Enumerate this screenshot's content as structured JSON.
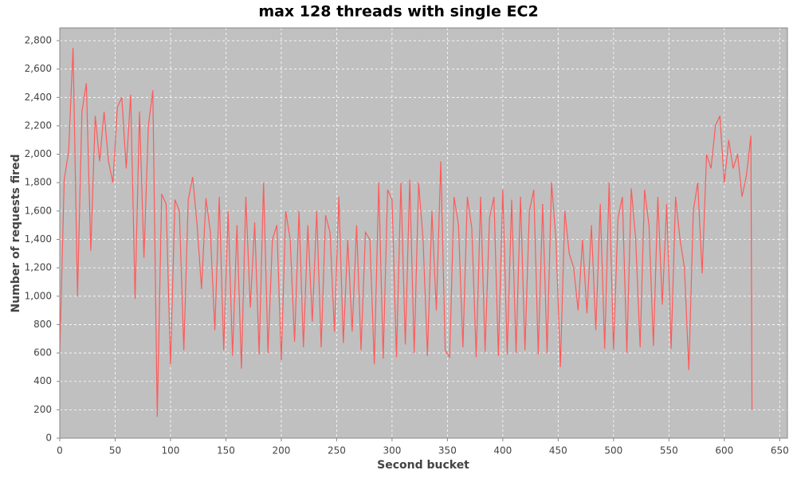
{
  "chart_data": {
    "type": "line",
    "title": "max 128 threads with single EC2",
    "x_label": "Second bucket",
    "y_label": "Number of requests fired",
    "color": "#ff5a5a",
    "background": "#c0c0c0",
    "grid": true,
    "x": [
      0,
      4,
      8,
      12,
      16,
      20,
      24,
      28,
      32,
      36,
      40,
      44,
      48,
      52,
      56,
      60,
      64,
      68,
      72,
      76,
      80,
      84,
      88,
      92,
      96,
      100,
      104,
      108,
      112,
      116,
      120,
      124,
      128,
      132,
      136,
      140,
      144,
      148,
      152,
      156,
      160,
      164,
      168,
      172,
      176,
      180,
      184,
      188,
      192,
      196,
      200,
      204,
      208,
      212,
      216,
      220,
      224,
      228,
      232,
      236,
      240,
      244,
      248,
      252,
      256,
      260,
      264,
      268,
      272,
      276,
      280,
      284,
      288,
      292,
      296,
      300,
      304,
      308,
      312,
      316,
      320,
      324,
      328,
      332,
      336,
      340,
      344,
      348,
      352,
      356,
      360,
      364,
      368,
      372,
      376,
      380,
      384,
      388,
      392,
      396,
      400,
      404,
      408,
      412,
      416,
      420,
      424,
      428,
      432,
      436,
      440,
      444,
      448,
      452,
      456,
      460,
      464,
      468,
      472,
      476,
      480,
      484,
      488,
      492,
      496,
      500,
      504,
      508,
      512,
      516,
      520,
      524,
      528,
      532,
      536,
      540,
      544,
      548,
      552,
      556,
      560,
      564,
      568,
      572,
      576,
      580,
      584,
      588,
      592,
      596,
      600,
      604,
      608,
      612,
      616,
      620,
      624,
      625
    ],
    "values": [
      600,
      1820,
      2020,
      2750,
      1000,
      2300,
      2500,
      1320,
      2270,
      1950,
      2300,
      1950,
      1800,
      2330,
      2400,
      1900,
      2420,
      980,
      2300,
      1270,
      2200,
      2450,
      150,
      1720,
      1650,
      520,
      1680,
      1600,
      620,
      1680,
      1840,
      1500,
      1050,
      1690,
      1450,
      760,
      1700,
      620,
      1600,
      580,
      1500,
      490,
      1700,
      920,
      1520,
      590,
      1800,
      600,
      1400,
      1500,
      550,
      1600,
      1400,
      680,
      1600,
      640,
      1500,
      820,
      1600,
      640,
      1570,
      1450,
      750,
      1700,
      670,
      1400,
      750,
      1500,
      620,
      1450,
      1400,
      520,
      1800,
      560,
      1750,
      1680,
      570,
      1800,
      660,
      1820,
      600,
      1800,
      1400,
      580,
      1600,
      900,
      1950,
      620,
      570,
      1700,
      1500,
      640,
      1700,
      1480,
      570,
      1700,
      610,
      1550,
      1700,
      580,
      1750,
      590,
      1680,
      600,
      1700,
      620,
      1600,
      1750,
      590,
      1650,
      600,
      1800,
      1400,
      500,
      1600,
      1300,
      1200,
      900,
      1400,
      880,
      1500,
      760,
      1650,
      630,
      1800,
      620,
      1550,
      1700,
      600,
      1760,
      1400,
      640,
      1750,
      1500,
      650,
      1700,
      940,
      1650,
      630,
      1700,
      1400,
      1200,
      480,
      1600,
      1800,
      1160,
      2000,
      1900,
      2200,
      2270,
      1800,
      2100,
      1900,
      2000,
      1700,
      1850,
      2130,
      200
    ],
    "xlim": [
      0,
      657
    ],
    "xticks": [
      0,
      50,
      100,
      150,
      200,
      250,
      300,
      350,
      400,
      450,
      500,
      550,
      600,
      650
    ],
    "ylim": [
      0,
      2890
    ],
    "yticks": [
      0,
      200,
      400,
      600,
      800,
      {
        "value": 1000,
        "label": "1,000"
      },
      {
        "value": 1200,
        "label": "1,200"
      },
      {
        "value": 1400,
        "label": "1,400"
      },
      {
        "value": 1600,
        "label": "1,600"
      },
      {
        "value": 1800,
        "label": "1,800"
      },
      {
        "value": 2000,
        "label": "2,000"
      },
      {
        "value": 2200,
        "label": "2,200"
      },
      {
        "value": 2400,
        "label": "2,400"
      },
      {
        "value": 2600,
        "label": "2,600"
      },
      {
        "value": 2800,
        "label": "2,800"
      }
    ]
  }
}
